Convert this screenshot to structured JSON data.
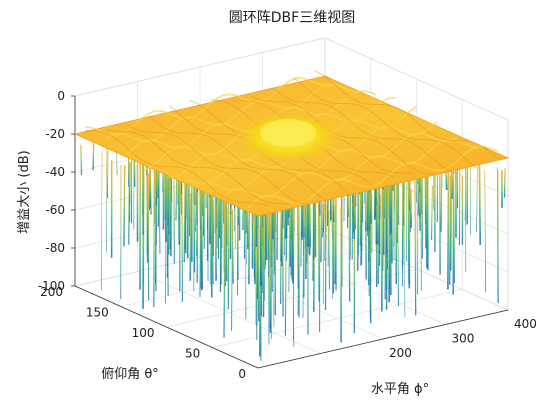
{
  "chart_data": {
    "type": "surface3d",
    "title": "圆环阵DBF三维视图",
    "xlabel": "水平角 ϕ°",
    "ylabel": "俯仰角 θ°",
    "zlabel": "增益大小 (dB)",
    "xlim": [
      0,
      400
    ],
    "ylim": [
      0,
      200
    ],
    "zlim": [
      -100,
      0
    ],
    "xticks": [
      200,
      300,
      400
    ],
    "yticks": [
      0,
      50,
      100,
      150,
      200
    ],
    "zticks": [
      0,
      -20,
      -40,
      -60,
      -80,
      -100
    ],
    "grid": true,
    "colormap": "parula",
    "peak": {
      "x": 180,
      "y": 90,
      "z": 0
    },
    "surface_level_db": -20,
    "deep_nulls_db": -100,
    "colors": {
      "high": "#f8d81a",
      "mid": "#f5a623",
      "low": "#21a38a",
      "deep": "#1f6fb5"
    }
  }
}
